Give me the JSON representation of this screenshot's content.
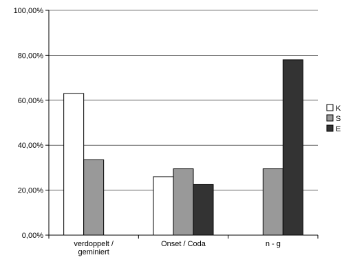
{
  "chart_data": {
    "type": "bar",
    "categories": [
      [
        "verdoppelt /",
        "geminiert"
      ],
      [
        "Onset / Coda"
      ],
      [
        "n - g"
      ]
    ],
    "series": [
      {
        "name": "K",
        "color": "#ffffff",
        "values": [
          63,
          26,
          0
        ]
      },
      {
        "name": "S",
        "color": "#999999",
        "values": [
          33.5,
          29.5,
          29.5
        ]
      },
      {
        "name": "E",
        "color": "#333333",
        "values": [
          0,
          22.5,
          78
        ]
      }
    ],
    "ylim": [
      0,
      100
    ],
    "yticks": [
      "0,00%",
      "20,00%",
      "40,00%",
      "60,00%",
      "80,00%",
      "100,00%"
    ],
    "grid": true,
    "legend": "right"
  }
}
